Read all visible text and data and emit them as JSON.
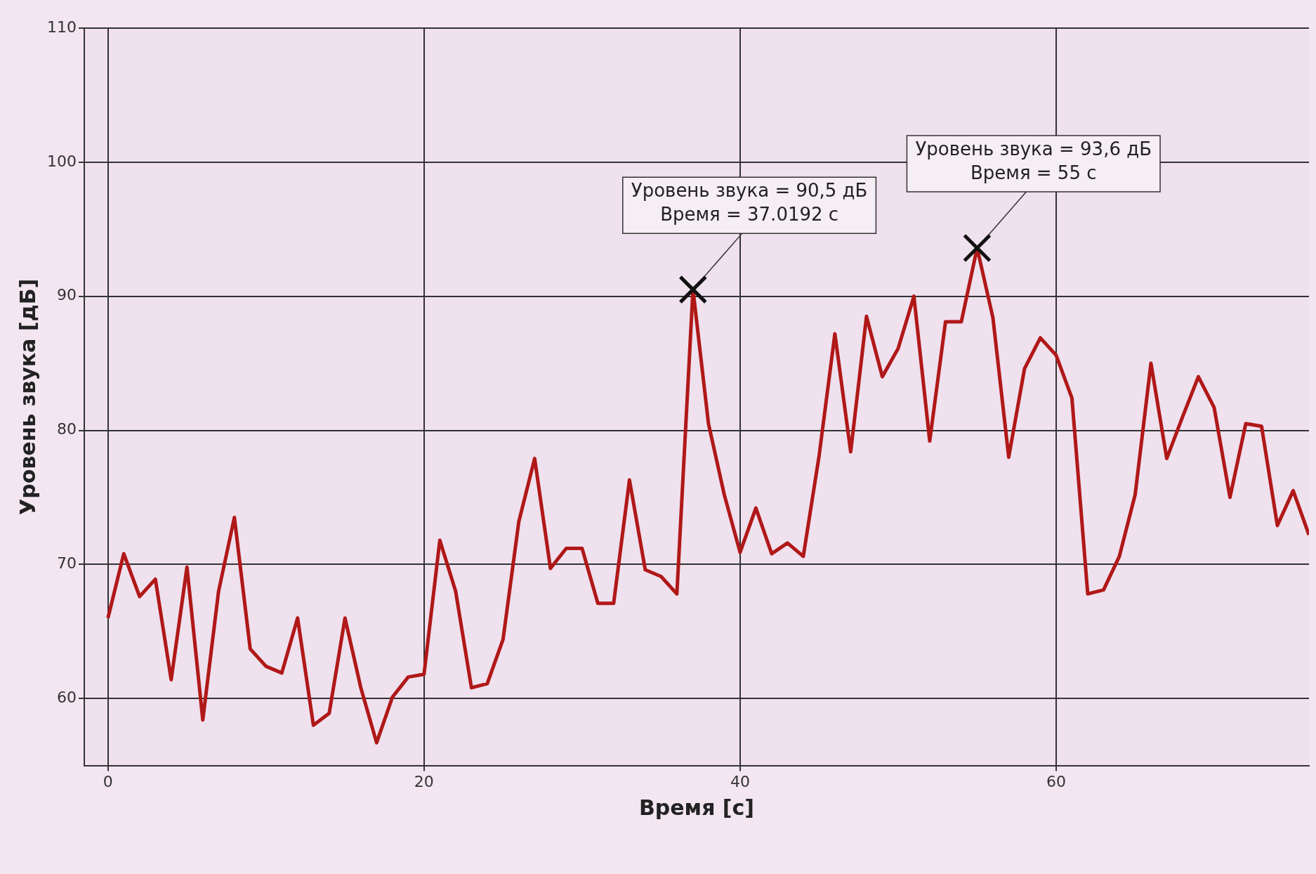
{
  "chart_data": {
    "type": "line",
    "xlabel": "Время [с]",
    "ylabel": "Уровень звука [дБ]",
    "x": [
      0,
      1,
      2,
      3,
      4,
      5,
      6,
      7,
      8,
      9,
      10,
      11,
      12,
      13,
      14,
      15,
      16,
      17,
      18,
      19,
      20,
      21,
      22,
      23,
      24,
      25,
      26,
      27,
      28,
      29,
      30,
      31,
      32,
      33,
      34,
      35,
      36,
      37.0192,
      38,
      39,
      40,
      41,
      42,
      43,
      44,
      45,
      46,
      47,
      48,
      49,
      50,
      51,
      52,
      53,
      54,
      55,
      56,
      57,
      58,
      59,
      60,
      61,
      62,
      63,
      64,
      65,
      66,
      67,
      68,
      69,
      70,
      71,
      72,
      73,
      74,
      75,
      76
    ],
    "series": [
      {
        "color": "#b01818",
        "values": [
          66.0,
          70.8,
          67.6,
          68.9,
          61.4,
          69.8,
          58.4,
          68.0,
          73.5,
          63.7,
          62.4,
          61.9,
          66.0,
          58.0,
          58.9,
          66.0,
          60.8,
          56.7,
          60.1,
          61.6,
          61.8,
          71.8,
          68.0,
          60.8,
          61.1,
          64.4,
          73.2,
          77.9,
          69.7,
          71.2,
          71.2,
          67.1,
          67.1,
          76.3,
          69.6,
          69.1,
          67.8,
          90.5,
          80.5,
          75.2,
          70.9,
          74.2,
          70.8,
          71.6,
          70.6,
          78.1,
          87.2,
          78.4,
          88.5,
          84.0,
          86.1,
          90.0,
          79.2,
          88.1,
          88.1,
          93.6,
          88.4,
          78.0,
          84.6,
          86.9,
          85.6,
          82.4,
          67.8,
          68.1,
          70.6,
          75.2,
          85.0,
          77.9,
          81.0,
          84.0,
          81.7,
          75.0,
          80.5,
          80.3,
          72.9,
          75.5,
          72.2
        ]
      }
    ],
    "xlim": [
      -1.5,
      76
    ],
    "xticks": [
      0,
      20,
      40,
      60
    ],
    "ylim": [
      55,
      110
    ],
    "yticks": [
      60,
      70,
      80,
      90,
      100,
      110
    ],
    "grid": true,
    "legend": false,
    "marker": "none",
    "line_style": "solid",
    "annotations": [
      {
        "text": "Уровень звука = 90,5 дБ\nВремя = 37.0192 с",
        "x": 37.0192,
        "y": 90.5
      },
      {
        "text": "Уровень звука = 93,6 дБ\nВремя = 55 с",
        "x": 55,
        "y": 93.6
      }
    ]
  }
}
